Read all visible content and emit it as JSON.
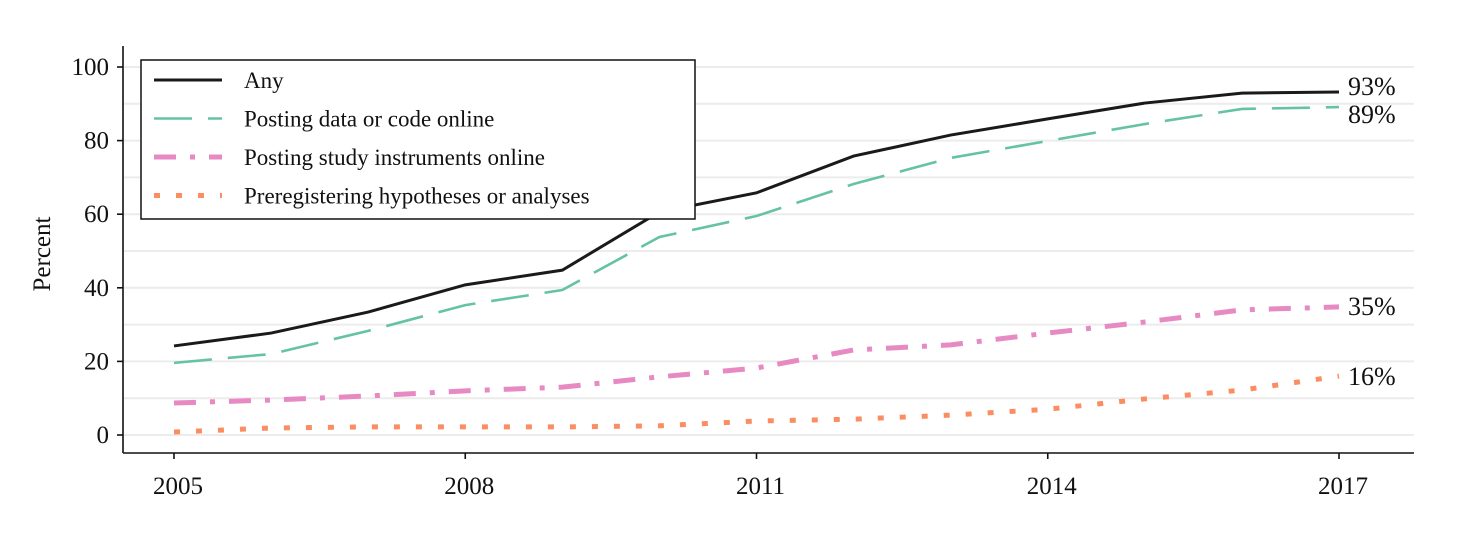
{
  "chart_data": {
    "type": "line",
    "xlabel": "",
    "ylabel": "Percent",
    "xlim": [
      2004.5,
      2017.8
    ],
    "ylim": [
      -5,
      105
    ],
    "x_ticks": [
      2005,
      2008,
      2011,
      2014,
      2017
    ],
    "x_tick_labels": [
      "2005",
      "2008",
      "2011",
      "2014",
      "2017"
    ],
    "y_ticks": [
      0,
      20,
      40,
      60,
      80,
      100
    ],
    "y_tick_labels": [
      "0",
      "20",
      "40",
      "60",
      "80",
      "100"
    ],
    "grid": "horizontal, every 10",
    "legend_position": "top-left",
    "x": [
      2005,
      2006,
      2007,
      2008,
      2009,
      2010,
      2011,
      2012,
      2013,
      2014,
      2015,
      2016,
      2017
    ],
    "series": [
      {
        "name": "Any",
        "color": "#1a1a1a",
        "style": "solid",
        "end_label": "93%",
        "values": [
          24.2,
          27.7,
          33.4,
          40.8,
          44.8,
          60.6,
          65.8,
          75.8,
          81.5,
          85.9,
          90.2,
          92.9,
          93.2
        ]
      },
      {
        "name": "Posting data or code online",
        "color": "#66c2a5",
        "style": "dashed",
        "end_label": "89%",
        "values": [
          19.6,
          22.0,
          28.3,
          35.3,
          39.4,
          53.8,
          59.5,
          68.2,
          75.3,
          79.9,
          84.5,
          88.6,
          89.1
        ]
      },
      {
        "name": "Posting study instruments online",
        "color": "#e78ac3",
        "style": "dashdot",
        "end_label": "35%",
        "values": [
          8.7,
          9.5,
          10.6,
          12.0,
          13.0,
          15.8,
          18.2,
          23.1,
          24.5,
          27.7,
          30.7,
          34.0,
          34.8
        ]
      },
      {
        "name": "Preregistering hypotheses or analyses",
        "color": "#fc8d62",
        "style": "dotted",
        "end_label": "16%",
        "values": [
          0.8,
          1.9,
          2.2,
          2.2,
          2.2,
          2.5,
          3.8,
          4.3,
          5.4,
          7.0,
          9.8,
          12.2,
          16.0
        ]
      }
    ]
  }
}
